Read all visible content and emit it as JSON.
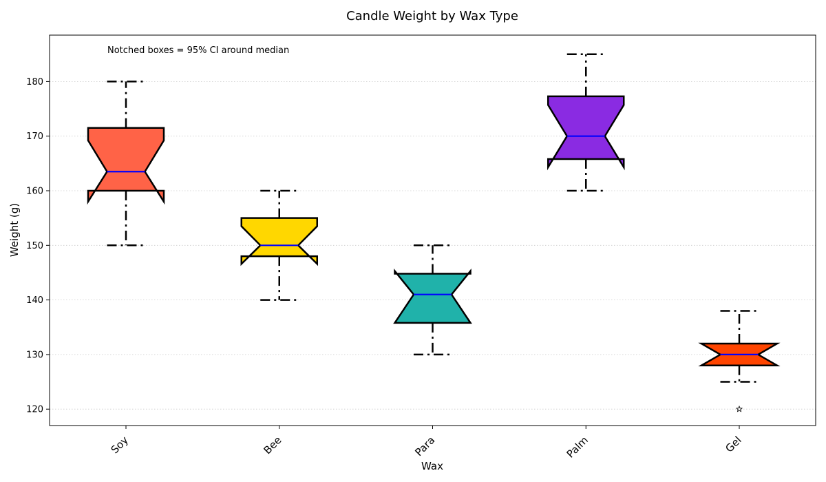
{
  "chart_data": {
    "type": "boxplot",
    "title": "Candle Weight by Wax Type",
    "xlabel": "Wax",
    "ylabel": "Weight (g)",
    "annotation": "Notched boxes = 95% CI around median",
    "ylim": [
      117,
      188.5
    ],
    "yticks": [
      120,
      130,
      140,
      150,
      160,
      170,
      180
    ],
    "grid": "horizontal dotted",
    "categories": [
      "Soy",
      "Bee",
      "Para",
      "Palm",
      "Gel"
    ],
    "boxes": [
      {
        "category": "Soy",
        "color": "#FF6347",
        "whisker_low": 150,
        "q1": 160,
        "median": 163.5,
        "q3": 171.5,
        "whisker_high": 180,
        "notch_low": 158.0,
        "notch_high": 169.2,
        "outliers": []
      },
      {
        "category": "Bee",
        "color": "#FFD700",
        "whisker_low": 140,
        "q1": 148,
        "median": 150,
        "q3": 155,
        "whisker_high": 160,
        "notch_low": 146.6,
        "notch_high": 153.5,
        "outliers": []
      },
      {
        "category": "Para",
        "color": "#20B2AA",
        "whisker_low": 130,
        "q1": 135.8,
        "median": 141,
        "q3": 144.8,
        "whisker_high": 150,
        "notch_low": 135.8,
        "notch_high": 145.3,
        "outliers": []
      },
      {
        "category": "Palm",
        "color": "#8A2BE2",
        "whisker_low": 160,
        "q1": 165.8,
        "median": 170,
        "q3": 177.3,
        "whisker_high": 185,
        "notch_low": 164.3,
        "notch_high": 175.7,
        "outliers": []
      },
      {
        "category": "Gel",
        "color": "#FF4500",
        "whisker_low": 125,
        "q1": 128,
        "median": 130,
        "q3": 132,
        "whisker_high": 138,
        "notch_low": 128.0,
        "notch_high": 132.0,
        "outliers": [
          120
        ]
      }
    ],
    "median_color": "#0000FF",
    "edge_color": "#000000"
  }
}
